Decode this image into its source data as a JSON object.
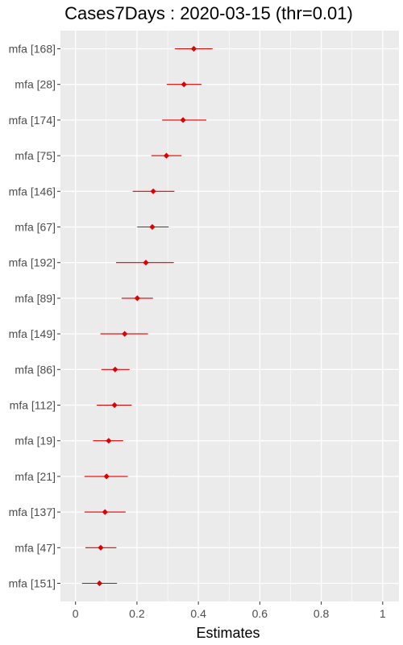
{
  "chart_data": {
    "type": "scatter",
    "title": "Cases7Days : 2020-03-15 (thr=0.01)",
    "xlabel": "Estimates",
    "ylabel": "",
    "xlim": [
      -0.04,
      1.04
    ],
    "x_ticks": [
      0,
      0.2,
      0.4,
      0.6,
      0.8,
      1
    ],
    "x_tick_labels": [
      "0",
      "0.2",
      "0.4",
      "0.6",
      "0.8",
      "1"
    ],
    "grid": true,
    "colors": {
      "panel": "#ebebeb",
      "grid": "#ffffff",
      "point": "#dd0000",
      "background": "#ffffff"
    },
    "categories": [
      "mfa [168]",
      "mfa [28]",
      "mfa [174]",
      "mfa [75]",
      "mfa [146]",
      "mfa [67]",
      "mfa [192]",
      "mfa [89]",
      "mfa [149]",
      "mfa [86]",
      "mfa [112]",
      "mfa [19]",
      "mfa [21]",
      "mfa [137]",
      "mfa [47]",
      "mfa [151]"
    ],
    "series": [
      {
        "estimate": [
          0.385,
          0.353,
          0.35,
          0.296,
          0.253,
          0.25,
          0.229,
          0.201,
          0.16,
          0.129,
          0.127,
          0.108,
          0.101,
          0.096,
          0.082,
          0.078
        ],
        "lower": [
          0.323,
          0.297,
          0.282,
          0.247,
          0.186,
          0.201,
          0.132,
          0.15,
          0.081,
          0.084,
          0.069,
          0.057,
          0.029,
          0.029,
          0.032,
          0.021
        ],
        "upper": [
          0.446,
          0.41,
          0.426,
          0.345,
          0.322,
          0.303,
          0.32,
          0.252,
          0.236,
          0.176,
          0.183,
          0.155,
          0.17,
          0.163,
          0.133,
          0.135
        ]
      }
    ]
  }
}
